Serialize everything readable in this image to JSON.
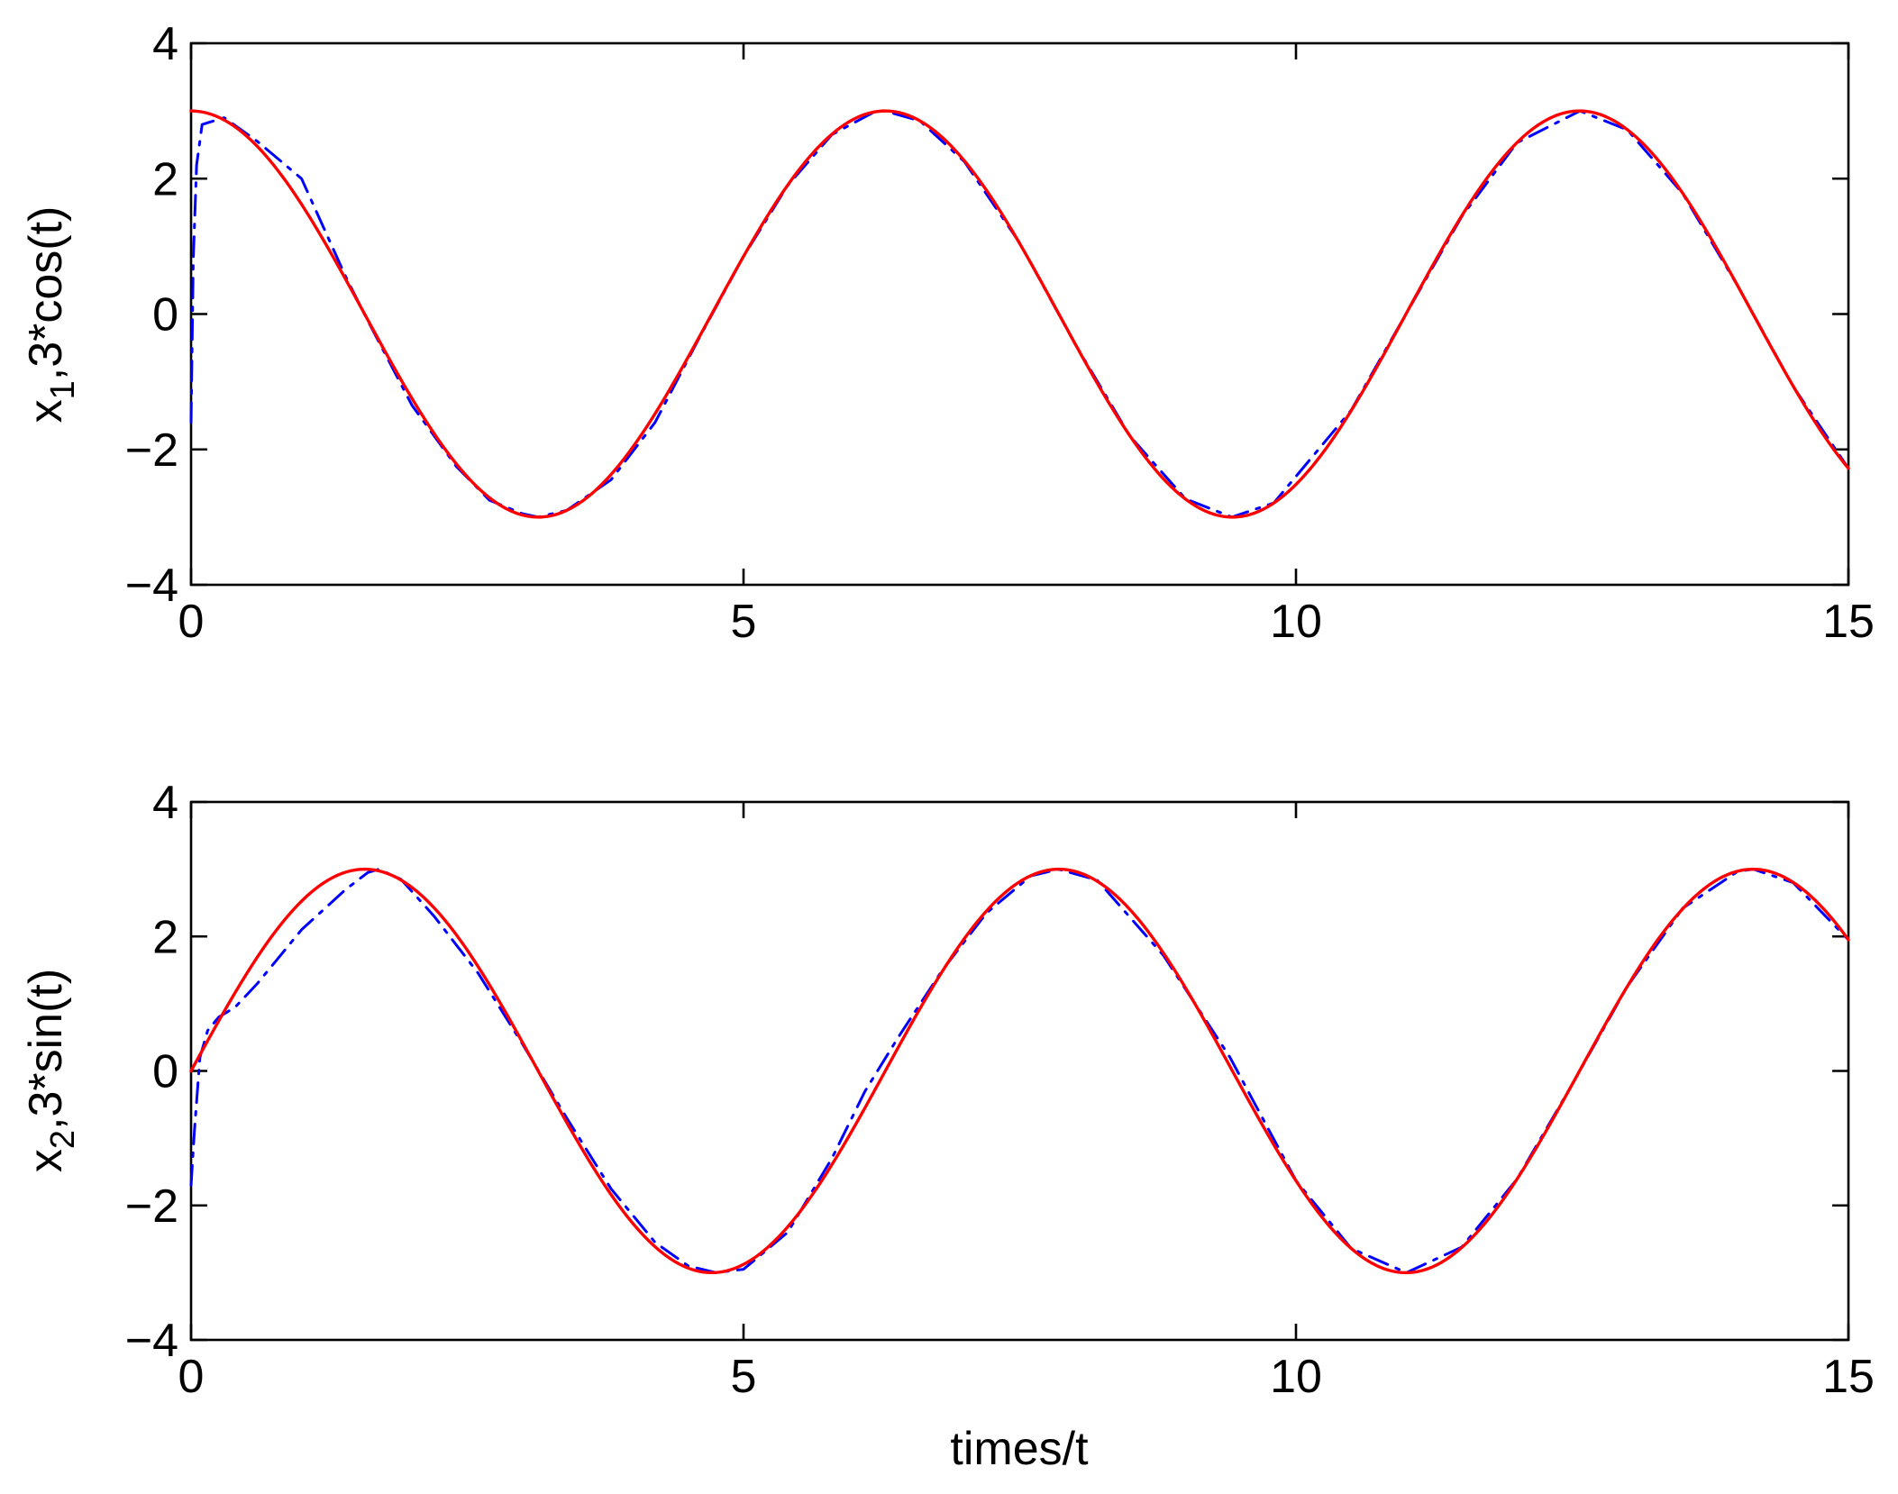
{
  "chart_data": [
    {
      "type": "line",
      "xlabel": "",
      "ylabel": {
        "base": "x",
        "sub": "1",
        "rest": ",3*cos(t)"
      },
      "xlim": [
        0,
        15
      ],
      "ylim": [
        -4,
        4
      ],
      "xticks": [
        0,
        5,
        10,
        15
      ],
      "xtick_labels": [
        "0",
        "5",
        "10",
        "15"
      ],
      "yticks": [
        -4,
        -2,
        0,
        2,
        4
      ],
      "ytick_labels": [
        "−4",
        "−2",
        "0",
        "2",
        "4"
      ],
      "grid": false,
      "series": [
        {
          "style": "dash-dot",
          "color": "#0000ff",
          "x": [
            0,
            0.02,
            0.05,
            0.1,
            0.3,
            0.6,
            1.0,
            1.4,
            1.6,
            2.0,
            2.4,
            2.7,
            3.0,
            3.14,
            3.4,
            3.8,
            4.2,
            4.6,
            5.0,
            5.4,
            5.8,
            6.2,
            6.28,
            6.6,
            7.0,
            7.5,
            8.0,
            8.5,
            9.0,
            9.42,
            9.8,
            10.5,
            11.0,
            11.5,
            12.0,
            12.57,
            13.0,
            13.5,
            14.0,
            14.5,
            15.0
          ],
          "y": [
            -1.6,
            0.8,
            2.2,
            2.8,
            2.9,
            2.55,
            2.0,
            0.55,
            -0.1,
            -1.35,
            -2.25,
            -2.75,
            -2.95,
            -3.0,
            -2.9,
            -2.45,
            -1.6,
            -0.35,
            0.85,
            1.9,
            2.65,
            3.0,
            3.0,
            2.85,
            2.25,
            1.05,
            -0.44,
            -1.81,
            -2.73,
            -3.0,
            -2.79,
            -1.42,
            0.013,
            1.44,
            2.53,
            3.0,
            2.72,
            1.78,
            0.41,
            -1.07,
            -2.28
          ]
        },
        {
          "style": "solid",
          "color": "#ff0000",
          "function": "3*cos(t)"
        }
      ]
    },
    {
      "type": "line",
      "xlabel": "times/t",
      "ylabel": {
        "base": "x",
        "sub": "2",
        "rest": ",3*sin(t)"
      },
      "xlim": [
        0,
        15
      ],
      "ylim": [
        -4,
        4
      ],
      "xticks": [
        0,
        5,
        10,
        15
      ],
      "xtick_labels": [
        "0",
        "5",
        "10",
        "15"
      ],
      "yticks": [
        -4,
        -2,
        0,
        2,
        4
      ],
      "ytick_labels": [
        "−4",
        "−2",
        "0",
        "2",
        "4"
      ],
      "grid": false,
      "series": [
        {
          "style": "dash-dot",
          "color": "#0000ff",
          "x": [
            0,
            0.03,
            0.08,
            0.15,
            0.25,
            0.4,
            0.6,
            0.8,
            1.0,
            1.2,
            1.4,
            1.6,
            1.7,
            1.9,
            2.2,
            2.6,
            3.0,
            3.4,
            3.8,
            4.2,
            4.5,
            4.75,
            5.0,
            5.4,
            5.8,
            6.1,
            6.4,
            6.8,
            7.2,
            7.6,
            7.85,
            8.2,
            8.8,
            9.4,
            10.0,
            10.5,
            11.0,
            11.5,
            12.0,
            12.5,
            13.0,
            13.5,
            14.0,
            14.14,
            14.5,
            15.0
          ],
          "y": [
            -1.7,
            -0.9,
            0.2,
            0.6,
            0.8,
            0.95,
            1.3,
            1.7,
            2.1,
            2.4,
            2.7,
            2.95,
            3.0,
            2.85,
            2.3,
            1.45,
            0.4,
            -0.7,
            -1.75,
            -2.55,
            -2.9,
            -3.0,
            -2.95,
            -2.4,
            -1.3,
            -0.3,
            0.5,
            1.5,
            2.35,
            2.9,
            3.0,
            2.84,
            1.72,
            0.21,
            -1.63,
            -2.64,
            -3.0,
            -2.62,
            -1.61,
            -0.2,
            1.26,
            2.42,
            2.97,
            3.0,
            2.8,
            1.95
          ]
        },
        {
          "style": "solid",
          "color": "#ff0000",
          "function": "3*sin(t)"
        }
      ]
    }
  ]
}
